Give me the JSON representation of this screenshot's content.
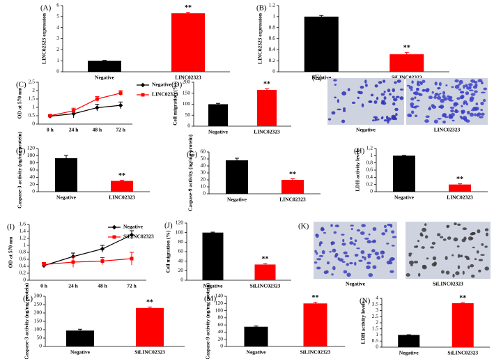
{
  "chart_data": [
    {
      "type": "bar",
      "label": "(A)",
      "ylabel": "LINC02323 expression",
      "categories": [
        "Negative",
        "LINC02323"
      ],
      "values": [
        1,
        5.3
      ],
      "errors": [
        0.03,
        0.1
      ],
      "colors": [
        "#000000",
        "#ff0000"
      ],
      "ylim": [
        0,
        6
      ],
      "yticks": [
        0,
        1,
        2,
        3,
        4,
        5,
        6
      ],
      "annotations": [
        {
          "text": "**",
          "category": "LINC02323"
        }
      ]
    },
    {
      "type": "bar",
      "label": "(B)",
      "ylabel": "LINC02323 expression",
      "categories": [
        "Negative",
        "SiLINC02323"
      ],
      "values": [
        1,
        0.32
      ],
      "errors": [
        0.02,
        0.03
      ],
      "colors": [
        "#000000",
        "#ff0000"
      ],
      "ylim": [
        0,
        1.2
      ],
      "yticks": [
        0,
        0.2,
        0.4,
        0.6,
        0.8,
        1,
        1.2
      ],
      "annotations": [
        {
          "text": "**",
          "category": "SiLINC02323"
        }
      ]
    },
    {
      "type": "line",
      "label": "(C)",
      "ylabel": "OD at 570 nm",
      "categories": [
        "0 h",
        "24 h",
        "48 h",
        "72 h"
      ],
      "series": [
        {
          "name": "Negative",
          "color": "#000000",
          "marker": "diamond",
          "values": [
            0.47,
            0.62,
            0.98,
            1.12
          ],
          "errors": [
            0.05,
            0.25,
            0.2,
            0.2
          ]
        },
        {
          "name": "LINC02323",
          "color": "#ff0000",
          "marker": "square",
          "values": [
            0.5,
            0.8,
            1.5,
            1.85
          ],
          "errors": [
            0.05,
            0.15,
            0.15,
            0.15
          ]
        }
      ],
      "ylim": [
        0,
        2.5
      ],
      "yticks": [
        0,
        0.5,
        1,
        1.5,
        2,
        2.5
      ],
      "legend": "right"
    },
    {
      "type": "bar",
      "label": "(D)",
      "ylabel": "Cell migration (%)",
      "categories": [
        "Negative",
        "LINC02323"
      ],
      "values": [
        100,
        165
      ],
      "errors": [
        4,
        6
      ],
      "colors": [
        "#000000",
        "#ff0000"
      ],
      "ylim": [
        0,
        200
      ],
      "yticks": [
        0,
        50,
        100,
        150,
        200
      ],
      "annotations": [
        {
          "text": "**",
          "category": "LINC02323"
        }
      ]
    },
    {
      "type": "bar",
      "label": "(F)",
      "ylabel": "Caspase-3 activity (ng/mg protein)",
      "categories": [
        "Negative",
        "LINC02323"
      ],
      "values": [
        93,
        30
      ],
      "errors": [
        8,
        2
      ],
      "colors": [
        "#000000",
        "#ff0000"
      ],
      "ylim": [
        0,
        120
      ],
      "yticks": [
        0,
        20,
        40,
        60,
        80,
        100,
        120
      ],
      "annotations": [
        {
          "text": "**",
          "category": "LINC02323"
        }
      ]
    },
    {
      "type": "bar",
      "label": "(G)",
      "ylabel": "Caspase-9 activity (ng/mg protein)",
      "categories": [
        "Negative",
        "LINC02323"
      ],
      "values": [
        48,
        20
      ],
      "errors": [
        3,
        1.5
      ],
      "colors": [
        "#000000",
        "#ff0000"
      ],
      "ylim": [
        0,
        60
      ],
      "yticks": [
        0,
        10,
        20,
        30,
        40,
        50,
        60
      ],
      "annotations": [
        {
          "text": "**",
          "category": "LINC02323"
        }
      ]
    },
    {
      "type": "bar",
      "label": "(H)",
      "ylabel": "LDH activity levels",
      "categories": [
        "Negative",
        "LINC02323"
      ],
      "values": [
        1,
        0.2
      ],
      "errors": [
        0.01,
        0.02
      ],
      "colors": [
        "#000000",
        "#ff0000"
      ],
      "ylim": [
        0,
        1.2
      ],
      "yticks": [
        0,
        0.2,
        0.4,
        0.6,
        0.8,
        1,
        1.2
      ],
      "annotations": [
        {
          "text": "**",
          "category": "LINC02323"
        }
      ]
    },
    {
      "type": "line",
      "label": "(I)",
      "ylabel": "OD at 570 nm",
      "categories": [
        "0 h",
        "24 h",
        "48 h",
        "72 h"
      ],
      "series": [
        {
          "name": "Negative",
          "color": "#000000",
          "marker": "diamond",
          "values": [
            0.42,
            0.68,
            0.9,
            1.3
          ],
          "errors": [
            0.05,
            0.1,
            0.1,
            0.12
          ]
        },
        {
          "name": "SiLINC02323",
          "color": "#ff0000",
          "marker": "square",
          "values": [
            0.45,
            0.52,
            0.55,
            0.62
          ],
          "errors": [
            0.06,
            0.15,
            0.1,
            0.18
          ]
        }
      ],
      "ylim": [
        0,
        1.6
      ],
      "yticks": [
        0,
        0.2,
        0.4,
        0.6,
        0.8,
        1,
        1.2,
        1.4,
        1.6
      ],
      "legend": "upper right"
    },
    {
      "type": "bar",
      "label": "(J)",
      "ylabel": "Cell migration (%)",
      "categories": [
        "Negative",
        "SiLINC02323"
      ],
      "values": [
        100,
        33
      ],
      "errors": [
        1,
        2
      ],
      "colors": [
        "#000000",
        "#ff0000"
      ],
      "ylim": [
        0,
        120
      ],
      "yticks": [
        0,
        20,
        40,
        60,
        80,
        100,
        120
      ],
      "annotations": [
        {
          "text": "**",
          "category": "SiLINC02323"
        }
      ]
    },
    {
      "type": "bar",
      "label": "(L)",
      "ylabel": "Caspase-3 activity (ng/mg protein)",
      "categories": [
        "Negative",
        "SiLINC02323"
      ],
      "values": [
        95,
        230
      ],
      "errors": [
        8,
        6
      ],
      "colors": [
        "#000000",
        "#ff0000"
      ],
      "ylim": [
        0,
        300
      ],
      "yticks": [
        0,
        50,
        100,
        150,
        200,
        250,
        300
      ],
      "annotations": [
        {
          "text": "**",
          "category": "SiLINC02323"
        }
      ]
    },
    {
      "type": "bar",
      "label": "(M)",
      "ylabel": "Caspase-9 activity (ng/mg protein)",
      "categories": [
        "Negative",
        "SiLINC02323"
      ],
      "values": [
        55,
        120
      ],
      "errors": [
        2,
        3
      ],
      "colors": [
        "#000000",
        "#ff0000"
      ],
      "ylim": [
        0,
        140
      ],
      "yticks": [
        0,
        20,
        40,
        60,
        80,
        100,
        120,
        140
      ],
      "annotations": [
        {
          "text": "**",
          "category": "SiLINC02323"
        }
      ]
    },
    {
      "type": "bar",
      "label": "(N)",
      "ylabel": "LDH activity levels",
      "categories": [
        "Negative",
        "SiLINC02323"
      ],
      "values": [
        1,
        3.6
      ],
      "errors": [
        0.02,
        0.05
      ],
      "colors": [
        "#000000",
        "#ff0000"
      ],
      "ylim": [
        0,
        4
      ],
      "yticks": [
        0,
        0.5,
        1,
        1.5,
        2,
        2.5,
        3,
        3.5,
        4
      ],
      "annotations": [
        {
          "text": "**",
          "category": "SiLINC02323"
        }
      ]
    }
  ],
  "images": [
    {
      "label": "(E)",
      "captions": [
        "Negative",
        "LINC02323"
      ]
    },
    {
      "label": "(K)",
      "captions": [
        "Negative",
        "SiLINC02323"
      ]
    }
  ]
}
